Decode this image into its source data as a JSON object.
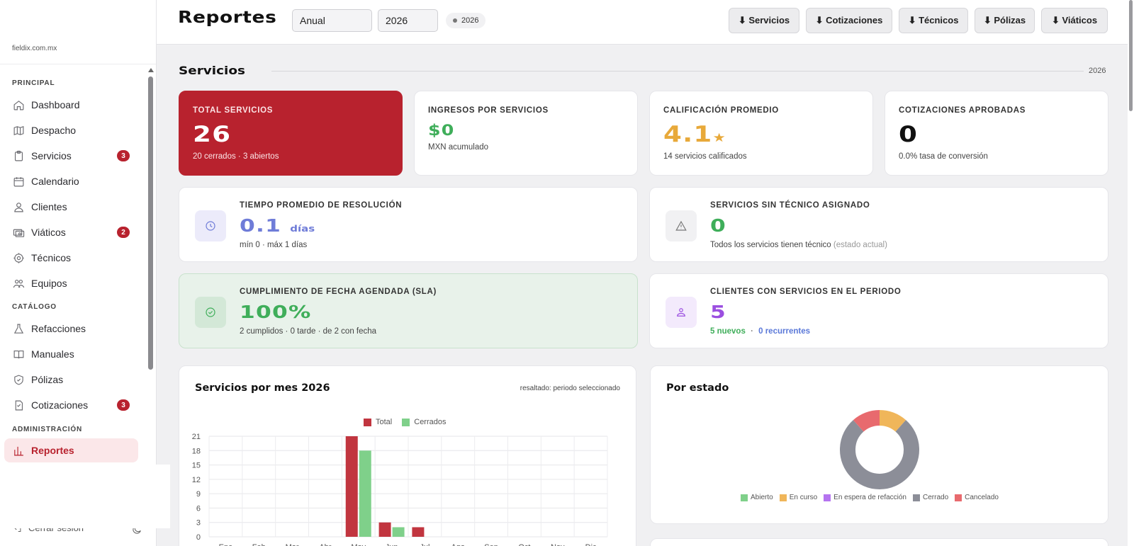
{
  "sidebar": {
    "domain": "fieldix.com.mx",
    "sections": {
      "principal": "PRINCIPAL",
      "catalogo": "CATÁLOGO",
      "administracion": "ADMINISTRACIÓN"
    },
    "items": [
      {
        "label": "Dashboard",
        "icon": "home-icon"
      },
      {
        "label": "Despacho",
        "icon": "map-icon"
      },
      {
        "label": "Servicios",
        "icon": "clipboard-icon",
        "badge": "3"
      },
      {
        "label": "Calendario",
        "icon": "calendar-icon"
      },
      {
        "label": "Clientes",
        "icon": "user-icon"
      },
      {
        "label": "Viáticos",
        "icon": "cash-icon",
        "badge": "2"
      },
      {
        "label": "Técnicos",
        "icon": "gear-icon"
      },
      {
        "label": "Equipos",
        "icon": "team-icon"
      },
      {
        "label": "Refacciones",
        "icon": "flask-icon"
      },
      {
        "label": "Manuales",
        "icon": "book-icon"
      },
      {
        "label": "Pólizas",
        "icon": "shield-icon"
      },
      {
        "label": "Cotizaciones",
        "icon": "document-icon",
        "badge": "3"
      },
      {
        "label": "Reportes",
        "icon": "bar-chart-icon",
        "active": true
      }
    ],
    "logout": "Cerrar sesión"
  },
  "header": {
    "title": "Reportes",
    "period_select": "Anual",
    "year_select": "2026",
    "chip": "2026",
    "buttons": [
      "⬇ Servicios",
      "⬇ Cotizaciones",
      "⬇ Técnicos",
      "⬇ Pólizas",
      "⬇ Viáticos"
    ]
  },
  "section": {
    "title": "Servicios",
    "year": "2026"
  },
  "kpis": {
    "total": {
      "label": "TOTAL SERVICIOS",
      "value": "26",
      "sub": "20 cerrados · 3 abiertos"
    },
    "ingresos": {
      "label": "INGRESOS POR SERVICIOS",
      "value": "$0",
      "sub": "MXN acumulado",
      "color": "#3fae5a"
    },
    "calificacion": {
      "label": "CALIFICACIÓN PROMEDIO",
      "value": "4.1",
      "star": "★",
      "sub": "14 servicios calificados",
      "color": "#e8a93a"
    },
    "cotizaciones": {
      "label": "COTIZACIONES APROBADAS",
      "value": "0",
      "sub": "0.0% tasa de conversión"
    }
  },
  "wide": {
    "tiempo": {
      "label": "TIEMPO PROMEDIO DE RESOLUCIÓN",
      "value": "0.1",
      "unit": "días",
      "sub": "mín 0 · máx 1 días",
      "icon": "clock-icon",
      "color": "#6f7cd8"
    },
    "sin_tecnico": {
      "label": "SERVICIOS SIN TÉCNICO ASIGNADO",
      "value": "0",
      "sub": "Todos los servicios tienen técnico",
      "sub_muted": "(estado actual)",
      "icon": "warning-icon",
      "color": "#3fae5a"
    },
    "sla": {
      "label": "CUMPLIMIENTO DE FECHA AGENDADA (SLA)",
      "value": "100%",
      "sub": "2 cumplidos · 0 tarde · de 2 con fecha",
      "icon": "check-circle-icon",
      "color": "#3fae5a"
    },
    "clientes": {
      "label": "CLIENTES CON SERVICIOS EN EL PERIODO",
      "value": "5",
      "nuevos": "5 nuevos",
      "separator": "·",
      "recurrentes": "0 recurrentes",
      "icon": "users-icon",
      "color": "#9b4fe0"
    }
  },
  "charts": {
    "monthly": {
      "title": "Servicios por mes 2026",
      "note": "resaltado: periodo seleccionado"
    },
    "status": {
      "title": "Por estado"
    }
  },
  "chart_data": [
    {
      "type": "bar",
      "title": "Servicios por mes 2026",
      "categories": [
        "Ene",
        "Feb",
        "Mar",
        "Abr",
        "May",
        "Jun",
        "Jul",
        "Ago",
        "Sep",
        "Oct",
        "Nov",
        "Dic"
      ],
      "series": [
        {
          "name": "Total",
          "color": "#c1353f",
          "values": [
            0,
            0,
            0,
            0,
            21,
            3,
            2,
            0,
            0,
            0,
            0,
            0
          ]
        },
        {
          "name": "Cerrados",
          "color": "#7fd08a",
          "values": [
            0,
            0,
            0,
            0,
            18,
            2,
            0,
            0,
            0,
            0,
            0,
            0
          ]
        }
      ],
      "yticks": [
        0,
        3,
        6,
        9,
        12,
        15,
        18,
        21
      ],
      "ylim": [
        0,
        21
      ],
      "grid": true,
      "legend": "top-center"
    },
    {
      "type": "pie",
      "title": "Por estado",
      "donut": true,
      "slices": [
        {
          "name": "Abierto",
          "color": "#7fd08a",
          "value": 0
        },
        {
          "name": "En curso",
          "color": "#f0b65a",
          "value": 3
        },
        {
          "name": "En espera de refacción",
          "color": "#b574f0",
          "value": 0
        },
        {
          "name": "Cerrado",
          "color": "#8c8e98",
          "value": 20
        },
        {
          "name": "Cancelado",
          "color": "#e86a6e",
          "value": 3
        }
      ],
      "legend": "bottom"
    }
  ]
}
